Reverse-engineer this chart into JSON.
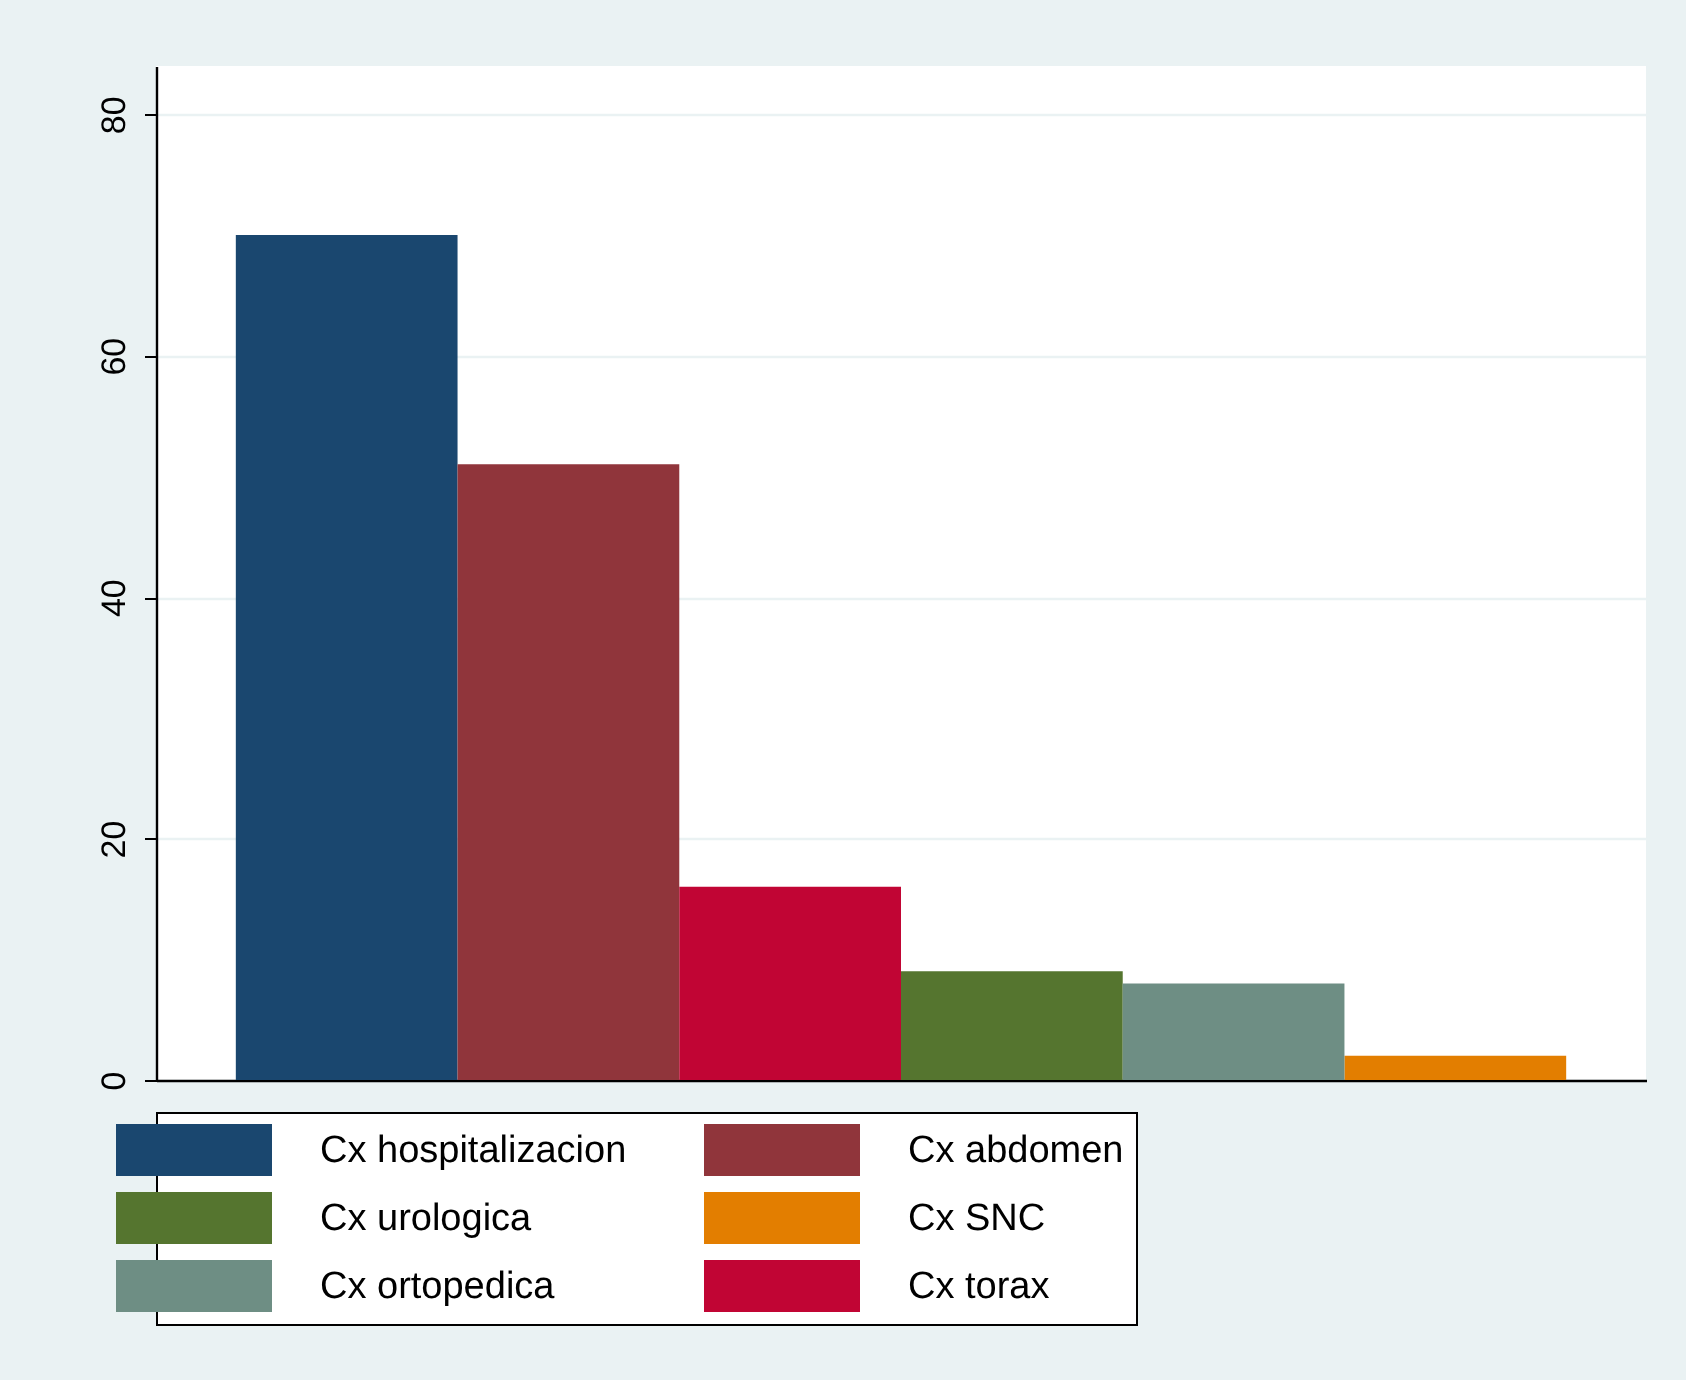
{
  "chart_data": {
    "type": "bar",
    "categories": [
      null,
      null,
      null,
      null,
      null,
      null
    ],
    "series": [
      {
        "name": "Cx hospitalizacion",
        "color": "#1a476f",
        "values": [
          70,
          null,
          null,
          null,
          null,
          null
        ]
      },
      {
        "name": "Cx abdomen",
        "color": "#90353b",
        "values": [
          null,
          51,
          null,
          null,
          null,
          null
        ]
      },
      {
        "name": "Cx urologica",
        "color": "#55752f",
        "values": [
          null,
          null,
          null,
          9,
          null,
          null
        ]
      },
      {
        "name": "Cx SNC",
        "color": "#e37e00",
        "values": [
          null,
          null,
          null,
          null,
          null,
          2
        ]
      },
      {
        "name": "Cx ortopedica",
        "color": "#6e8e84",
        "values": [
          null,
          null,
          null,
          null,
          8,
          null
        ]
      },
      {
        "name": "Cx torax",
        "color": "#c10534",
        "values": [
          null,
          null,
          16,
          null,
          null,
          null
        ]
      }
    ],
    "ylim": [
      0,
      84
    ],
    "yticks": [
      0,
      20,
      40,
      60,
      80
    ],
    "grid": "y",
    "legend": "bottom",
    "tick_labels": "y"
  }
}
